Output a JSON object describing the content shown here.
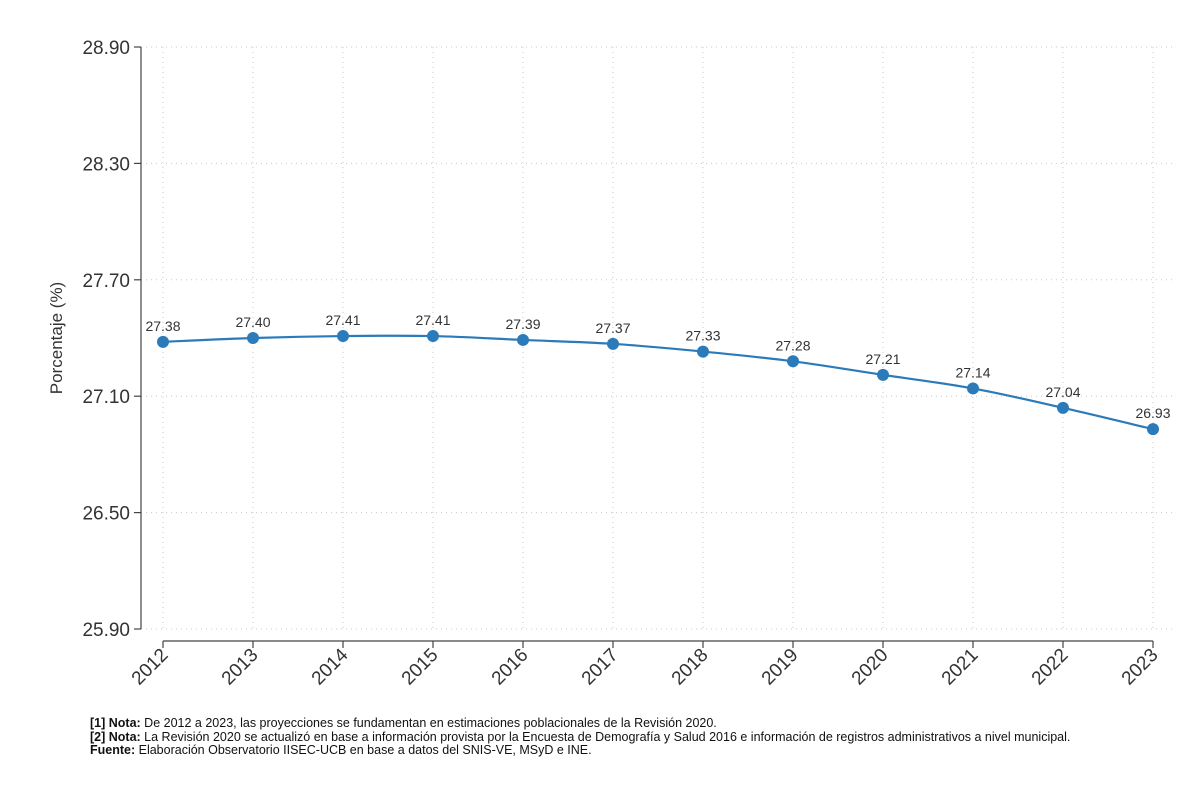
{
  "chart_data": {
    "type": "line",
    "title": "",
    "xlabel": "",
    "ylabel": "Porcentaje (%)",
    "ylim": [
      25.9,
      28.9
    ],
    "yticks": [
      "25.90",
      "26.50",
      "27.10",
      "27.70",
      "28.30",
      "28.90"
    ],
    "grid": true,
    "x": [
      "2012",
      "2013",
      "2014",
      "2015",
      "2016",
      "2017",
      "2018",
      "2019",
      "2020",
      "2021",
      "2022",
      "2023"
    ],
    "series": [
      {
        "values": [
          27.38,
          27.4,
          27.41,
          27.41,
          27.39,
          27.37,
          27.33,
          27.28,
          27.21,
          27.14,
          27.04,
          26.93
        ],
        "labels": [
          "27.38",
          "27.40",
          "27.41",
          "27.41",
          "27.39",
          "27.37",
          "27.33",
          "27.28",
          "27.21",
          "27.14",
          "27.04",
          "26.93"
        ],
        "color": "#2b7bba"
      }
    ]
  },
  "notes": [
    {
      "prefix": "[1] Nota:",
      "text": " De 2012 a 2023, las proyecciones se fundamentan en estimaciones poblacionales de la Revisión 2020."
    },
    {
      "prefix": "[2] Nota:",
      "text": " La Revisión 2020 se actualizó en base a información provista por la Encuesta de Demografía y Salud 2016 e información de registros administrativos a nivel municipal."
    },
    {
      "prefix": "Fuente:",
      "text": " Elaboración Observatorio IISEC-UCB en base a datos del SNIS-VE, MSyD e INE."
    }
  ]
}
